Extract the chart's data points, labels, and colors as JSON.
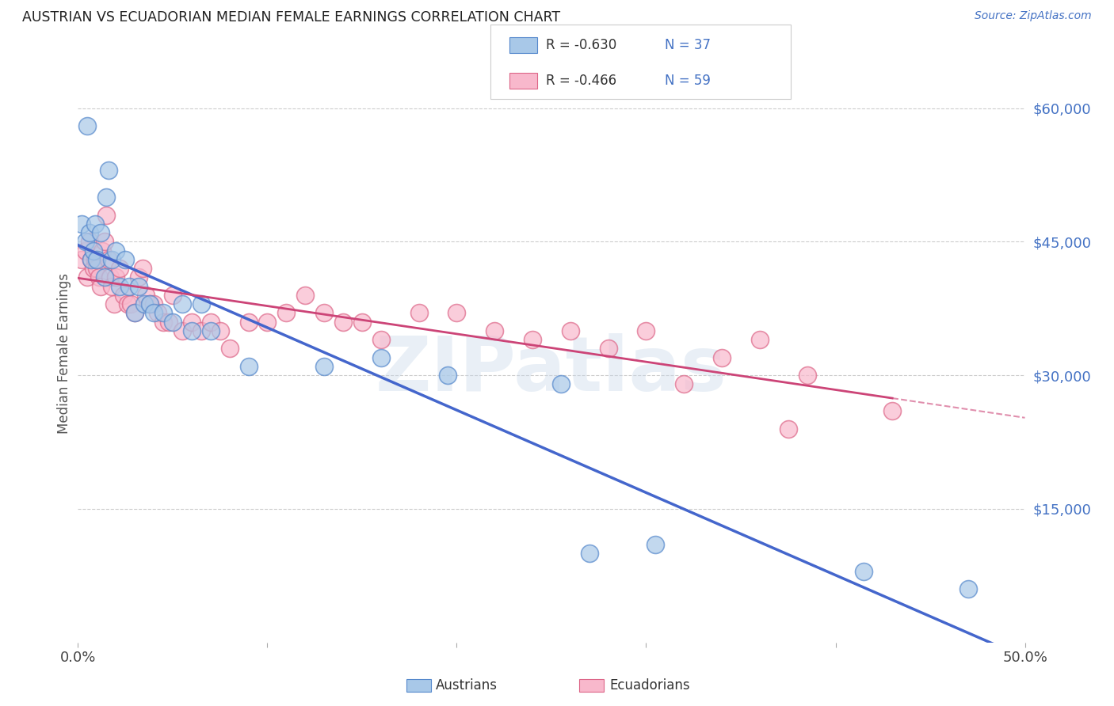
{
  "title": "AUSTRIAN VS ECUADORIAN MEDIAN FEMALE EARNINGS CORRELATION CHART",
  "source": "Source: ZipAtlas.com",
  "ylabel": "Median Female Earnings",
  "xlim": [
    0.0,
    0.5
  ],
  "ylim": [
    0,
    65000
  ],
  "watermark": "ZIPatlas",
  "legend_R_aus": "R = -0.630",
  "legend_N_aus": "N = 37",
  "legend_R_ecu": "R = -0.466",
  "legend_N_ecu": "N = 59",
  "aus_color": "#a8c8e8",
  "aus_edge": "#5588cc",
  "ecu_color": "#f8b8cc",
  "ecu_edge": "#dd6688",
  "line_aus_color": "#4466cc",
  "line_ecu_color": "#cc4477",
  "background_color": "#ffffff",
  "grid_color": "#cccccc",
  "source_color": "#4472c4",
  "watermark_color": "#c8d8ea",
  "austrians_x": [
    0.002,
    0.004,
    0.005,
    0.006,
    0.007,
    0.008,
    0.009,
    0.01,
    0.012,
    0.014,
    0.015,
    0.016,
    0.018,
    0.02,
    0.022,
    0.025,
    0.027,
    0.03,
    0.032,
    0.035,
    0.038,
    0.04,
    0.045,
    0.05,
    0.055,
    0.06,
    0.065,
    0.07,
    0.09,
    0.13,
    0.16,
    0.195,
    0.255,
    0.27,
    0.305,
    0.415,
    0.47
  ],
  "austrians_y": [
    47000,
    45000,
    58000,
    46000,
    43000,
    44000,
    47000,
    43000,
    46000,
    41000,
    50000,
    53000,
    43000,
    44000,
    40000,
    43000,
    40000,
    37000,
    40000,
    38000,
    38000,
    37000,
    37000,
    36000,
    38000,
    35000,
    38000,
    35000,
    31000,
    31000,
    32000,
    30000,
    29000,
    10000,
    11000,
    8000,
    6000
  ],
  "ecuadorians_x": [
    0.002,
    0.004,
    0.005,
    0.006,
    0.007,
    0.008,
    0.009,
    0.01,
    0.011,
    0.012,
    0.013,
    0.014,
    0.015,
    0.016,
    0.017,
    0.018,
    0.019,
    0.02,
    0.022,
    0.024,
    0.026,
    0.028,
    0.03,
    0.032,
    0.034,
    0.036,
    0.038,
    0.04,
    0.042,
    0.045,
    0.048,
    0.05,
    0.055,
    0.06,
    0.065,
    0.07,
    0.075,
    0.08,
    0.09,
    0.1,
    0.11,
    0.12,
    0.13,
    0.14,
    0.15,
    0.16,
    0.18,
    0.2,
    0.22,
    0.24,
    0.26,
    0.28,
    0.3,
    0.32,
    0.34,
    0.36,
    0.375,
    0.385,
    0.43
  ],
  "ecuadorians_y": [
    43000,
    44000,
    41000,
    45000,
    43000,
    42000,
    43000,
    42000,
    41000,
    40000,
    44000,
    45000,
    48000,
    43000,
    41000,
    40000,
    38000,
    41000,
    42000,
    39000,
    38000,
    38000,
    37000,
    41000,
    42000,
    39000,
    38000,
    38000,
    37000,
    36000,
    36000,
    39000,
    35000,
    36000,
    35000,
    36000,
    35000,
    33000,
    36000,
    36000,
    37000,
    39000,
    37000,
    36000,
    36000,
    34000,
    37000,
    37000,
    35000,
    34000,
    35000,
    33000,
    35000,
    29000,
    32000,
    34000,
    24000,
    30000,
    26000
  ]
}
